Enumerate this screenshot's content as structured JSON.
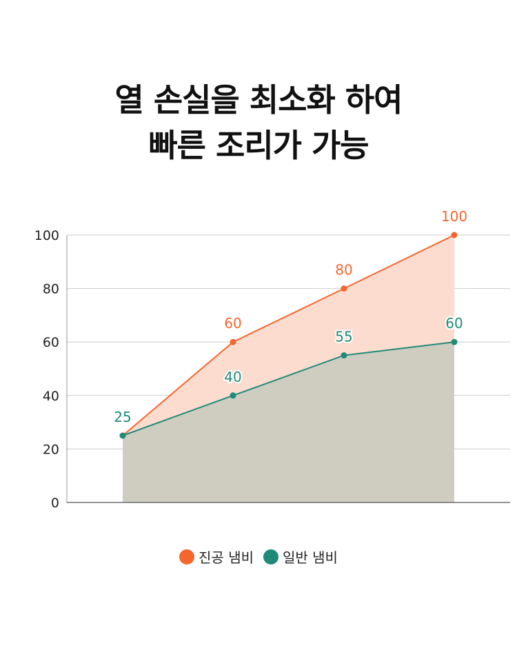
{
  "title": {
    "line1": "열 손실을 최소화 하여",
    "line2": "빠른 조리가 가능"
  },
  "chart_data": {
    "type": "area",
    "title": "열 손실을 최소화 하여 빠른 조리가 가능",
    "categories": [
      "",
      "",
      "",
      ""
    ],
    "ylim": [
      0,
      100
    ],
    "yticks": [
      0,
      20,
      40,
      60,
      80,
      100
    ],
    "grid": true,
    "legend_position": "bottom-center",
    "series": [
      {
        "name": "진공 냄비",
        "values": [
          25,
          60,
          80,
          100
        ],
        "color": "#f4662e",
        "fill": "#fcdccf"
      },
      {
        "name": "일반 냄비",
        "values": [
          25,
          40,
          55,
          60
        ],
        "color": "#1f8a78",
        "fill": "#cfcdc0"
      }
    ]
  }
}
